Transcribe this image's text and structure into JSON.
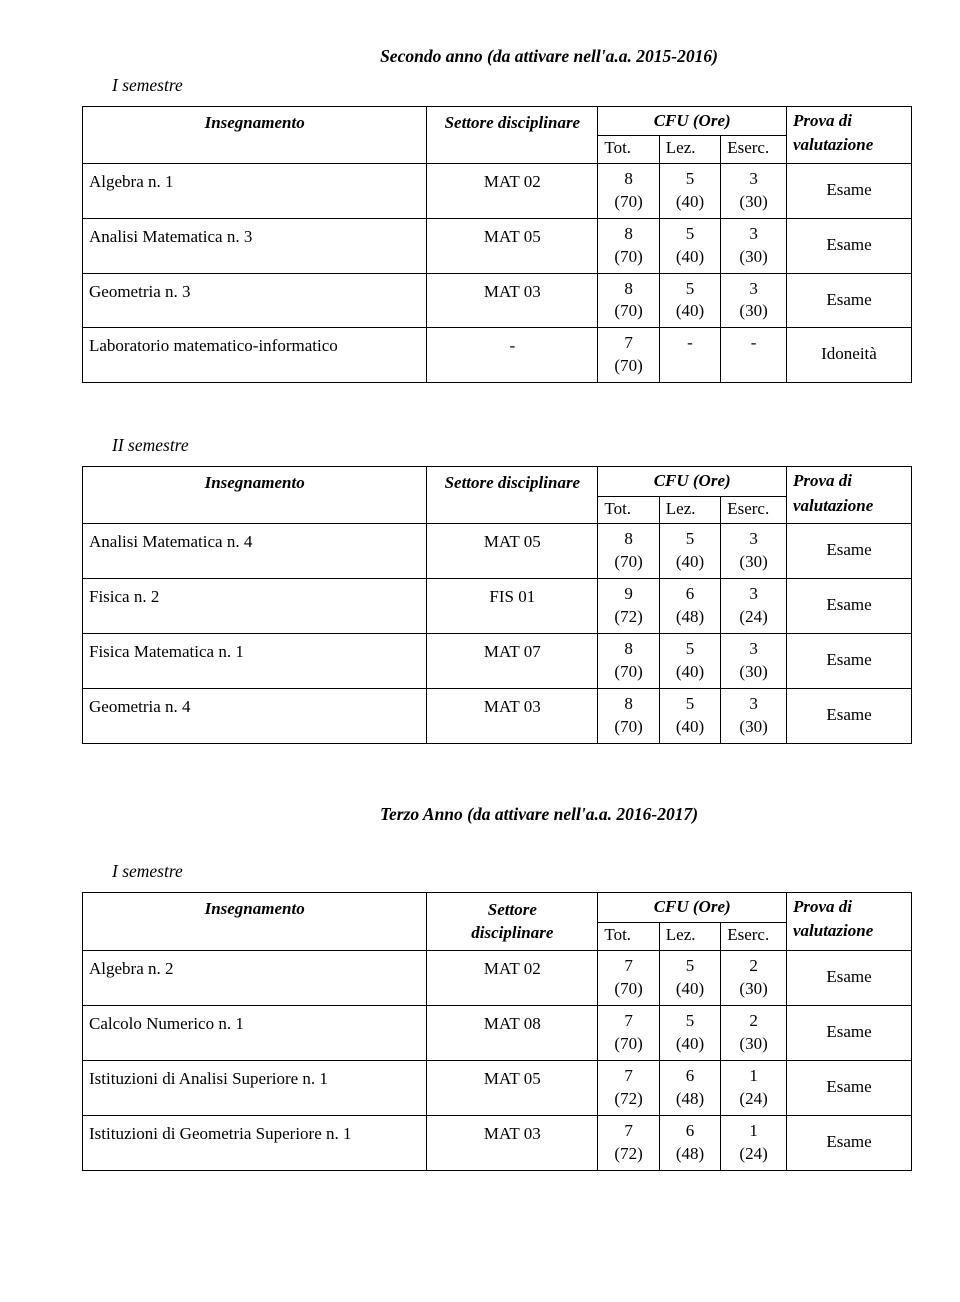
{
  "year2": {
    "title": "Secondo anno (da attivare nell'a.a. 2015-2016)",
    "sem1": {
      "title": "I semestre",
      "headers": {
        "insegnamento": "Insegnamento",
        "settore": "Settore disciplinare",
        "cfu": "CFU (Ore)",
        "tot": "Tot.",
        "lez": "Lez.",
        "eserc": "Eserc.",
        "prova1": "Prova di",
        "prova2": "valutazione"
      },
      "rows": [
        {
          "name": "Algebra n. 1",
          "settore": "MAT 02",
          "tot_a": "8",
          "tot_b": "(70)",
          "lez_a": "5",
          "lez_b": "(40)",
          "ese_a": "3",
          "ese_b": "(30)",
          "prova": "Esame"
        },
        {
          "name": "Analisi Matematica n. 3",
          "settore": "MAT 05",
          "tot_a": "8",
          "tot_b": "(70)",
          "lez_a": "5",
          "lez_b": "(40)",
          "ese_a": "3",
          "ese_b": "(30)",
          "prova": "Esame"
        },
        {
          "name": "Geometria n. 3",
          "settore": "MAT 03",
          "tot_a": "8",
          "tot_b": "(70)",
          "lez_a": "5",
          "lez_b": "(40)",
          "ese_a": "3",
          "ese_b": "(30)",
          "prova": "Esame"
        },
        {
          "name": "Laboratorio matematico-informatico",
          "settore": "-",
          "tot_a": "7",
          "tot_b": "(70)",
          "lez_a": "-",
          "lez_b": "",
          "ese_a": "-",
          "ese_b": "",
          "prova": "Idoneità"
        }
      ]
    },
    "sem2": {
      "title": "II semestre",
      "headers": {
        "insegnamento": "Insegnamento",
        "settore": "Settore disciplinare",
        "cfu": "CFU (Ore)",
        "tot": "Tot.",
        "lez": "Lez.",
        "eserc": "Eserc.",
        "prova1": "Prova di",
        "prova2": "valutazione"
      },
      "rows": [
        {
          "name": "Analisi Matematica n. 4",
          "settore": "MAT 05",
          "tot_a": "8",
          "tot_b": "(70)",
          "lez_a": "5",
          "lez_b": "(40)",
          "ese_a": "3",
          "ese_b": "(30)",
          "prova": "Esame"
        },
        {
          "name": "Fisica n. 2",
          "settore": "FIS 01",
          "tot_a": "9",
          "tot_b": "(72)",
          "lez_a": "6",
          "lez_b": "(48)",
          "ese_a": "3",
          "ese_b": "(24)",
          "prova": "Esame"
        },
        {
          "name": "Fisica Matematica n. 1",
          "settore": "MAT 07",
          "tot_a": "8",
          "tot_b": "(70)",
          "lez_a": "5",
          "lez_b": "(40)",
          "ese_a": "3",
          "ese_b": "(30)",
          "prova": "Esame"
        },
        {
          "name": "Geometria n. 4",
          "settore": "MAT 03",
          "tot_a": "8",
          "tot_b": "(70)",
          "lez_a": "5",
          "lez_b": "(40)",
          "ese_a": "3",
          "ese_b": "(30)",
          "prova": "Esame"
        }
      ]
    }
  },
  "year3": {
    "title": "Terzo Anno (da attivare nell'a.a. 2016-2017)",
    "sem1": {
      "title": "I semestre",
      "headers": {
        "insegnamento": "Insegnamento",
        "settore1": "Settore",
        "settore2": "disciplinare",
        "cfu": "CFU (Ore)",
        "tot": "Tot.",
        "lez": "Lez.",
        "eserc": "Eserc.",
        "prova1": "Prova di",
        "prova2": "valutazione"
      },
      "rows": [
        {
          "name": "Algebra n. 2",
          "settore": "MAT 02",
          "tot_a": "7",
          "tot_b": "(70)",
          "lez_a": "5",
          "lez_b": "(40)",
          "ese_a": "2",
          "ese_b": "(30)",
          "prova": "Esame"
        },
        {
          "name": "Calcolo Numerico n. 1",
          "settore": "MAT 08",
          "tot_a": "7",
          "tot_b": "(70)",
          "lez_a": "5",
          "lez_b": "(40)",
          "ese_a": "2",
          "ese_b": "(30)",
          "prova": "Esame"
        },
        {
          "name": "Istituzioni di Analisi Superiore n. 1",
          "settore": "MAT 05",
          "tot_a": "7",
          "tot_b": "(72)",
          "lez_a": "6",
          "lez_b": "(48)",
          "ese_a": "1",
          "ese_b": "(24)",
          "prova": "Esame"
        },
        {
          "name": "Istituzioni di Geometria Superiore n. 1",
          "settore": "MAT 03",
          "tot_a": "7",
          "tot_b": "(72)",
          "lez_a": "6",
          "lez_b": "(48)",
          "ese_a": "1",
          "ese_b": "(24)",
          "prova": "Esame"
        }
      ]
    }
  }
}
